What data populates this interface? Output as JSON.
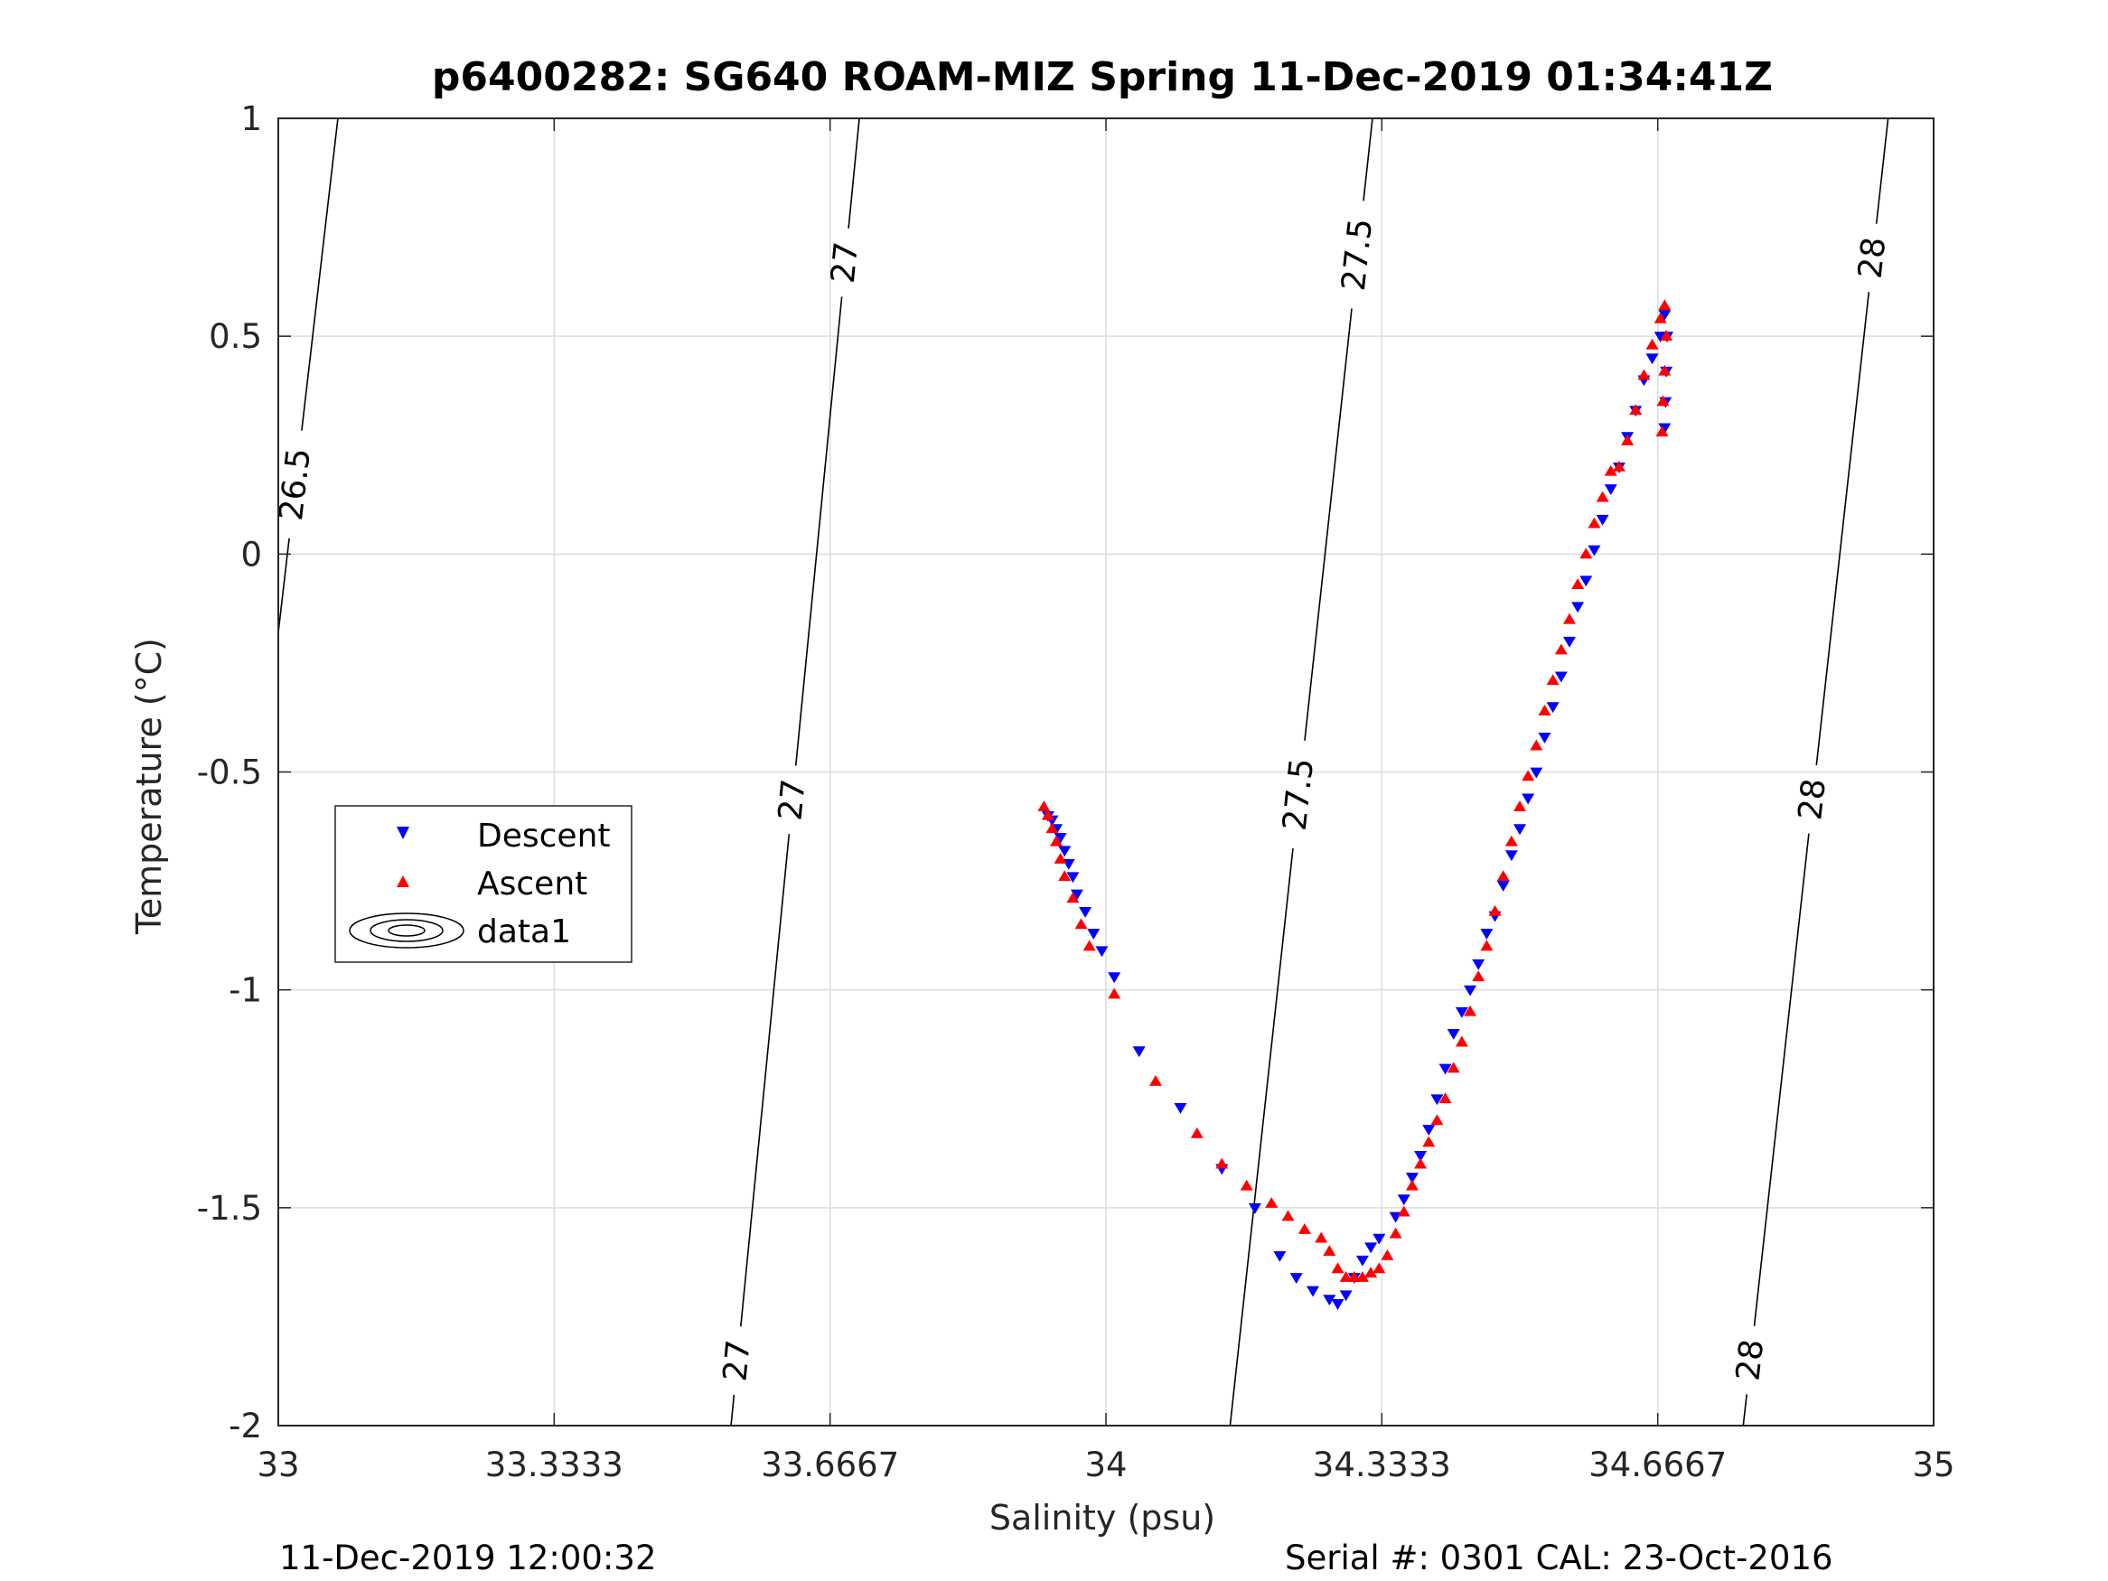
{
  "chart_data": {
    "type": "scatter",
    "title": "p6400282: SG640 ROAM-MIZ Spring 11-Dec-2019 01:34:41Z",
    "xlabel": "Salinity (psu)",
    "ylabel": "Temperature (°C)",
    "xlim": [
      33,
      35
    ],
    "ylim": [
      -2,
      1
    ],
    "xticks": [
      33,
      33.3333,
      33.6667,
      34,
      34.3333,
      34.6667,
      35
    ],
    "xtick_labels": [
      "33",
      "33.3333",
      "33.6667",
      "34",
      "34.3333",
      "34.6667",
      "35"
    ],
    "yticks": [
      1,
      0.5,
      0,
      -0.5,
      -1,
      -1.5,
      -2
    ],
    "ytick_labels": [
      "1",
      "0.5",
      "0",
      "-0.5",
      "-1",
      "-1.5",
      "-2"
    ],
    "grid": true,
    "legend_position": "left",
    "series": [
      {
        "name": "Descent",
        "marker": "triangle-down",
        "color": "#0000ff",
        "points": [
          [
            33.93,
            -0.6
          ],
          [
            33.935,
            -0.61
          ],
          [
            33.94,
            -0.63
          ],
          [
            33.945,
            -0.65
          ],
          [
            33.95,
            -0.68
          ],
          [
            33.955,
            -0.71
          ],
          [
            33.96,
            -0.74
          ],
          [
            33.965,
            -0.78
          ],
          [
            33.975,
            -0.82
          ],
          [
            33.985,
            -0.87
          ],
          [
            33.995,
            -0.91
          ],
          [
            34.01,
            -0.97
          ],
          [
            34.04,
            -1.14
          ],
          [
            34.09,
            -1.27
          ],
          [
            34.14,
            -1.41
          ],
          [
            34.18,
            -1.5
          ],
          [
            34.21,
            -1.61
          ],
          [
            34.23,
            -1.66
          ],
          [
            34.25,
            -1.69
          ],
          [
            34.27,
            -1.71
          ],
          [
            34.28,
            -1.72
          ],
          [
            34.29,
            -1.7
          ],
          [
            34.3,
            -1.66
          ],
          [
            34.31,
            -1.62
          ],
          [
            34.32,
            -1.59
          ],
          [
            34.33,
            -1.57
          ],
          [
            34.35,
            -1.52
          ],
          [
            34.36,
            -1.48
          ],
          [
            34.37,
            -1.43
          ],
          [
            34.38,
            -1.38
          ],
          [
            34.39,
            -1.32
          ],
          [
            34.4,
            -1.25
          ],
          [
            34.41,
            -1.18
          ],
          [
            34.42,
            -1.1
          ],
          [
            34.43,
            -1.05
          ],
          [
            34.44,
            -1.0
          ],
          [
            34.45,
            -0.94
          ],
          [
            34.46,
            -0.87
          ],
          [
            34.47,
            -0.83
          ],
          [
            34.48,
            -0.76
          ],
          [
            34.49,
            -0.69
          ],
          [
            34.5,
            -0.63
          ],
          [
            34.51,
            -0.56
          ],
          [
            34.52,
            -0.5
          ],
          [
            34.53,
            -0.42
          ],
          [
            34.54,
            -0.35
          ],
          [
            34.55,
            -0.28
          ],
          [
            34.56,
            -0.2
          ],
          [
            34.57,
            -0.12
          ],
          [
            34.58,
            -0.06
          ],
          [
            34.59,
            0.01
          ],
          [
            34.6,
            0.08
          ],
          [
            34.61,
            0.15
          ],
          [
            34.62,
            0.2
          ],
          [
            34.63,
            0.27
          ],
          [
            34.64,
            0.33
          ],
          [
            34.65,
            0.4
          ],
          [
            34.66,
            0.45
          ],
          [
            34.67,
            0.5
          ],
          [
            34.675,
            0.55
          ],
          [
            34.678,
            0.5
          ],
          [
            34.677,
            0.42
          ],
          [
            34.676,
            0.35
          ],
          [
            34.675,
            0.29
          ]
        ]
      },
      {
        "name": "Ascent",
        "marker": "triangle-up",
        "color": "#ff0000",
        "points": [
          [
            33.925,
            -0.58
          ],
          [
            33.93,
            -0.6
          ],
          [
            33.935,
            -0.63
          ],
          [
            33.94,
            -0.66
          ],
          [
            33.945,
            -0.7
          ],
          [
            33.95,
            -0.74
          ],
          [
            33.96,
            -0.79
          ],
          [
            33.97,
            -0.85
          ],
          [
            33.98,
            -0.9
          ],
          [
            34.01,
            -1.01
          ],
          [
            34.06,
            -1.21
          ],
          [
            34.11,
            -1.33
          ],
          [
            34.14,
            -1.4
          ],
          [
            34.17,
            -1.45
          ],
          [
            34.2,
            -1.49
          ],
          [
            34.22,
            -1.52
          ],
          [
            34.24,
            -1.55
          ],
          [
            34.26,
            -1.57
          ],
          [
            34.27,
            -1.6
          ],
          [
            34.28,
            -1.64
          ],
          [
            34.29,
            -1.66
          ],
          [
            34.3,
            -1.66
          ],
          [
            34.31,
            -1.66
          ],
          [
            34.32,
            -1.65
          ],
          [
            34.33,
            -1.64
          ],
          [
            34.34,
            -1.61
          ],
          [
            34.35,
            -1.56
          ],
          [
            34.36,
            -1.51
          ],
          [
            34.37,
            -1.45
          ],
          [
            34.38,
            -1.4
          ],
          [
            34.39,
            -1.35
          ],
          [
            34.4,
            -1.3
          ],
          [
            34.41,
            -1.25
          ],
          [
            34.42,
            -1.18
          ],
          [
            34.43,
            -1.12
          ],
          [
            34.44,
            -1.05
          ],
          [
            34.45,
            -0.97
          ],
          [
            34.46,
            -0.9
          ],
          [
            34.47,
            -0.82
          ],
          [
            34.48,
            -0.74
          ],
          [
            34.49,
            -0.66
          ],
          [
            34.5,
            -0.58
          ],
          [
            34.51,
            -0.51
          ],
          [
            34.52,
            -0.44
          ],
          [
            34.53,
            -0.36
          ],
          [
            34.54,
            -0.29
          ],
          [
            34.55,
            -0.22
          ],
          [
            34.56,
            -0.15
          ],
          [
            34.57,
            -0.07
          ],
          [
            34.58,
            0.0
          ],
          [
            34.59,
            0.07
          ],
          [
            34.6,
            0.13
          ],
          [
            34.61,
            0.19
          ],
          [
            34.62,
            0.2
          ],
          [
            34.63,
            0.26
          ],
          [
            34.64,
            0.33
          ],
          [
            34.65,
            0.41
          ],
          [
            34.66,
            0.48
          ],
          [
            34.67,
            0.54
          ],
          [
            34.675,
            0.57
          ],
          [
            34.677,
            0.5
          ],
          [
            34.675,
            0.42
          ],
          [
            34.673,
            0.35
          ],
          [
            34.672,
            0.28
          ]
        ]
      },
      {
        "name": "data1",
        "marker": "contour",
        "color": "#000000"
      }
    ],
    "contours": [
      {
        "label": "26.5",
        "line": [
          [
            33.0,
            -0.18
          ],
          [
            33.072,
            1.0
          ]
        ],
        "label_positions": [
          [
            33.02,
            0.16
          ]
        ]
      },
      {
        "label": "27",
        "line": [
          [
            33.547,
            -2.0
          ],
          [
            33.702,
            1.0
          ]
        ],
        "label_positions": [
          [
            33.55,
            -1.85
          ],
          [
            33.6,
            -0.56
          ],
          [
            33.68,
            0.67
          ]
        ]
      },
      {
        "label": "27.5",
        "line": [
          [
            34.15,
            -2.0
          ],
          [
            34.322,
            1.0
          ]
        ],
        "label_positions": [
          [
            34.225,
            -0.55
          ],
          [
            34.29,
            0.69
          ]
        ]
      },
      {
        "label": "28",
        "line": [
          [
            34.77,
            -2.0
          ],
          [
            34.945,
            1.0
          ]
        ],
        "label_positions": [
          [
            34.78,
            -1.85
          ],
          [
            34.84,
            -0.56
          ],
          [
            34.925,
            0.68
          ]
        ]
      }
    ]
  },
  "legend": {
    "descent_label": "Descent",
    "ascent_label": "Ascent",
    "data1_label": "data1"
  },
  "footer": {
    "left": "11-Dec-2019 12:00:32",
    "right": "Serial #: 0301  CAL: 23-Oct-2016"
  }
}
